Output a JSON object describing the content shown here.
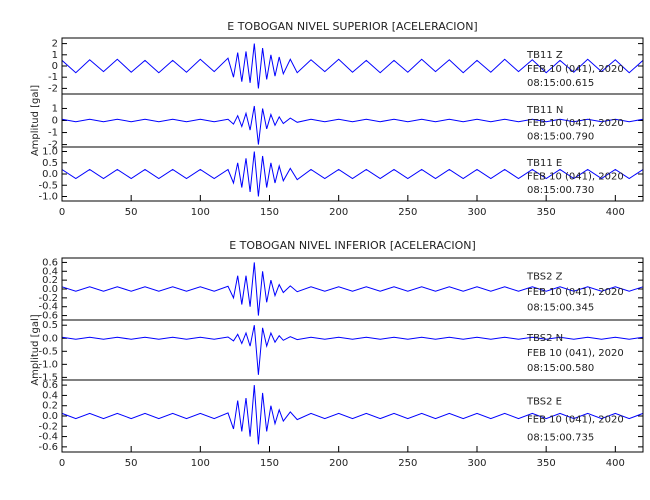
{
  "chart_data": [
    {
      "type": "line",
      "title": "E TOBOGAN NIVEL SUPERIOR [ACELERACION]",
      "y_label": "Amplitud [gal]",
      "xlim": [
        0,
        420
      ],
      "xticks": [
        0,
        50,
        100,
        150,
        200,
        250,
        300,
        350,
        400
      ],
      "x": [
        0,
        10,
        20,
        30,
        40,
        50,
        60,
        70,
        80,
        90,
        100,
        110,
        120,
        124,
        127,
        130,
        133,
        136,
        139,
        142,
        145,
        148,
        151,
        154,
        157,
        160,
        165,
        170,
        180,
        190,
        200,
        210,
        220,
        230,
        240,
        250,
        260,
        270,
        280,
        290,
        300,
        310,
        320,
        330,
        340,
        350,
        360,
        370,
        380,
        390,
        400,
        410,
        420
      ],
      "series": [
        {
          "name": "TB11   Z",
          "date": "FEB 10 (041), 2020",
          "time": "08:15:00.615",
          "color": "#0000ff",
          "ylim": [
            -2.5,
            2.5
          ],
          "yticks": [
            -2,
            -1,
            0,
            1,
            2
          ],
          "values": [
            0.5,
            -0.6,
            0.55,
            -0.5,
            0.6,
            -0.55,
            0.5,
            -0.6,
            0.5,
            -0.55,
            0.6,
            -0.5,
            0.7,
            -1.0,
            1.2,
            -1.4,
            1.3,
            -1.5,
            2.0,
            -2.0,
            1.6,
            -1.2,
            1.0,
            -0.9,
            0.8,
            -0.7,
            0.6,
            -0.6,
            0.55,
            -0.5,
            0.6,
            -0.55,
            0.5,
            -0.6,
            0.5,
            -0.55,
            0.6,
            -0.5,
            0.55,
            -0.6,
            0.5,
            -0.55,
            0.6,
            -0.5,
            0.55,
            -0.6,
            0.5,
            -0.55,
            0.6,
            -0.5,
            0.55,
            -0.6,
            0.5
          ]
        },
        {
          "name": "TB11   N",
          "date": "FEB 10 (041), 2020",
          "time": "08:15:00.790",
          "color": "#0000ff",
          "ylim": [
            -2.2,
            2.2
          ],
          "yticks": [
            -2,
            -1,
            0,
            1
          ],
          "values": [
            0.1,
            -0.1,
            0.1,
            -0.1,
            0.1,
            -0.1,
            0.1,
            -0.1,
            0.1,
            -0.1,
            0.1,
            -0.1,
            0.1,
            -0.3,
            0.4,
            -0.5,
            0.6,
            -0.8,
            1.2,
            -2.0,
            1.0,
            -0.7,
            0.5,
            -0.4,
            0.3,
            -0.25,
            0.2,
            -0.15,
            0.1,
            -0.1,
            0.1,
            -0.1,
            0.1,
            -0.1,
            0.1,
            -0.1,
            0.1,
            -0.1,
            0.1,
            -0.1,
            0.1,
            -0.1,
            0.1,
            -0.1,
            0.1,
            -0.1,
            0.1,
            -0.1,
            0.1,
            -0.1,
            0.1,
            -0.1,
            0.1
          ]
        },
        {
          "name": "TB11   E",
          "date": "FEB 10 (041), 2020",
          "time": "08:15:00.730",
          "color": "#0000ff",
          "ylim": [
            -1.2,
            1.2
          ],
          "yticks": [
            {
              "value": -1,
              "label": "-1.0"
            },
            -0.5,
            {
              "value": 0,
              "label": "0.0"
            },
            0.5,
            {
              "value": 1,
              "label": "1.0"
            }
          ],
          "values": [
            0.2,
            -0.2,
            0.2,
            -0.2,
            0.2,
            -0.2,
            0.2,
            -0.2,
            0.2,
            -0.2,
            0.2,
            -0.2,
            0.2,
            -0.4,
            0.5,
            -0.6,
            0.7,
            -0.8,
            1.0,
            -1.0,
            0.8,
            -0.6,
            0.5,
            -0.4,
            0.35,
            -0.3,
            0.25,
            -0.25,
            0.2,
            -0.2,
            0.2,
            -0.2,
            0.2,
            -0.2,
            0.2,
            -0.2,
            0.2,
            -0.2,
            0.2,
            -0.2,
            0.2,
            -0.2,
            0.2,
            -0.2,
            0.2,
            -0.2,
            0.2,
            -0.2,
            0.2,
            -0.2,
            0.2,
            -0.2,
            0.2
          ]
        }
      ]
    },
    {
      "type": "line",
      "title": "E TOBOGAN NIVEL INFERIOR [ACELERACION]",
      "y_label": "Amplitud [gal]",
      "xlim": [
        0,
        420
      ],
      "xticks": [
        0,
        50,
        100,
        150,
        200,
        250,
        300,
        350,
        400
      ],
      "x": [
        0,
        10,
        20,
        30,
        40,
        50,
        60,
        70,
        80,
        90,
        100,
        110,
        120,
        124,
        127,
        130,
        133,
        136,
        139,
        142,
        145,
        148,
        151,
        154,
        157,
        160,
        165,
        170,
        180,
        190,
        200,
        210,
        220,
        230,
        240,
        250,
        260,
        270,
        280,
        290,
        300,
        310,
        320,
        330,
        340,
        350,
        360,
        370,
        380,
        390,
        400,
        410,
        420
      ],
      "series": [
        {
          "name": "TBS2   Z",
          "date": "FEB 10 (041), 2020",
          "time": "08:15:00.345",
          "color": "#0000ff",
          "ylim": [
            -0.7,
            0.7
          ],
          "yticks": [
            -0.6,
            -0.4,
            -0.2,
            {
              "value": 0,
              "label": "0.0"
            },
            0.2,
            0.4,
            0.6
          ],
          "values": [
            0.05,
            -0.05,
            0.05,
            -0.05,
            0.05,
            -0.05,
            0.05,
            -0.05,
            0.05,
            -0.05,
            0.05,
            -0.05,
            0.06,
            -0.2,
            0.3,
            -0.35,
            0.3,
            -0.4,
            0.6,
            -0.6,
            0.4,
            -0.3,
            0.2,
            -0.15,
            0.1,
            -0.08,
            0.07,
            -0.06,
            0.05,
            -0.05,
            0.05,
            -0.05,
            0.05,
            -0.05,
            0.05,
            -0.05,
            0.05,
            -0.05,
            0.05,
            -0.05,
            0.05,
            -0.05,
            0.05,
            -0.05,
            0.05,
            -0.05,
            0.05,
            -0.05,
            0.05,
            -0.05,
            0.05,
            -0.05,
            0.05
          ]
        },
        {
          "name": "TBS2   N",
          "date": "FEB 10 (041), 2020",
          "time": "08:15:00.580",
          "color": "#0000ff",
          "ylim": [
            -1.6,
            0.7
          ],
          "yticks": [
            -1.5,
            {
              "value": -1,
              "label": "-1.0"
            },
            -0.5,
            {
              "value": 0,
              "label": "0.0"
            },
            0.5
          ],
          "values": [
            0.04,
            -0.04,
            0.04,
            -0.04,
            0.04,
            -0.04,
            0.04,
            -0.04,
            0.04,
            -0.04,
            0.04,
            -0.04,
            0.05,
            -0.1,
            0.15,
            -0.2,
            0.2,
            -0.3,
            0.5,
            -1.4,
            0.4,
            -0.3,
            0.2,
            -0.15,
            0.1,
            -0.08,
            0.06,
            -0.05,
            0.04,
            -0.04,
            0.04,
            -0.04,
            0.04,
            -0.04,
            0.04,
            -0.04,
            0.04,
            -0.04,
            0.04,
            -0.04,
            0.04,
            -0.04,
            0.04,
            -0.04,
            0.04,
            -0.04,
            0.04,
            -0.04,
            0.04,
            -0.04,
            0.04,
            -0.04,
            0.04
          ]
        },
        {
          "name": "TBS2   E",
          "date": "FEB 10 (041), 2020",
          "time": "08:15:00.735",
          "color": "#0000ff",
          "ylim": [
            -0.7,
            0.7
          ],
          "yticks": [
            -0.6,
            -0.4,
            -0.2,
            {
              "value": 0,
              "label": "0.0"
            },
            0.2,
            0.4,
            0.6
          ],
          "values": [
            0.05,
            -0.05,
            0.05,
            -0.05,
            0.05,
            -0.05,
            0.05,
            -0.05,
            0.05,
            -0.05,
            0.05,
            -0.05,
            0.06,
            -0.25,
            0.3,
            -0.3,
            0.35,
            -0.4,
            0.6,
            -0.55,
            0.45,
            -0.3,
            0.2,
            -0.15,
            0.12,
            -0.1,
            0.08,
            -0.07,
            0.05,
            -0.05,
            0.05,
            -0.05,
            0.05,
            -0.05,
            0.05,
            -0.05,
            0.05,
            -0.05,
            0.05,
            -0.05,
            0.05,
            -0.05,
            0.05,
            -0.05,
            0.05,
            -0.05,
            0.05,
            -0.05,
            0.05,
            -0.05,
            0.05,
            -0.05,
            0.05
          ]
        }
      ]
    }
  ]
}
